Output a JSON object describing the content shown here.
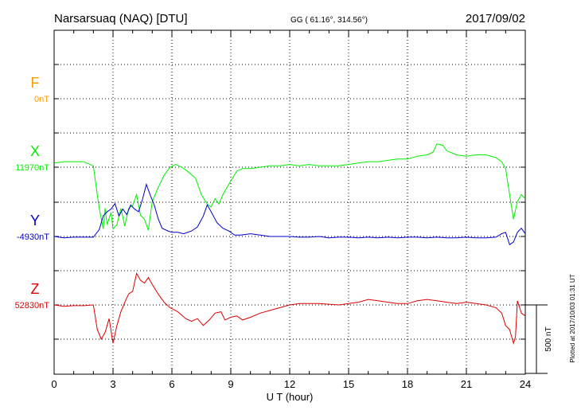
{
  "header": {
    "station": "Narsarsuaq (NAQ)  [DTU]",
    "coords": "GG ( 61.16°, 314.56°)",
    "date": "2017/09/02"
  },
  "side_note": "Plotted at 2017/10/03 01:31  UT",
  "scale_label": "500 nT",
  "colors": {
    "F": "#ff9900",
    "X": "#00ee00",
    "Y": "#0000cc",
    "Z": "#dd0000",
    "grid": "#000000"
  },
  "chart_data": {
    "type": "line",
    "title": "Narsarsuaq (NAQ)  [DTU]",
    "xlabel": "U T (hour)",
    "xlim": [
      0,
      24
    ],
    "xticks": [
      0,
      3,
      6,
      9,
      12,
      15,
      18,
      21,
      24
    ],
    "grid": true,
    "scale_bar_nT": 500,
    "series": [
      {
        "name": "F",
        "baseline_label": "0nT",
        "color": "#ff9900",
        "points": []
      },
      {
        "name": "X",
        "baseline_label": "11970nT",
        "color": "#00ee00",
        "points": [
          [
            0.0,
            30
          ],
          [
            0.5,
            40
          ],
          [
            1.0,
            40
          ],
          [
            1.5,
            40
          ],
          [
            2.0,
            10
          ],
          [
            2.1,
            -100
          ],
          [
            2.3,
            -300
          ],
          [
            2.5,
            -450
          ],
          [
            2.6,
            -300
          ],
          [
            2.7,
            -420
          ],
          [
            2.9,
            -330
          ],
          [
            3.0,
            -450
          ],
          [
            3.2,
            -420
          ],
          [
            3.4,
            -300
          ],
          [
            3.6,
            -430
          ],
          [
            3.8,
            -300
          ],
          [
            4.0,
            -280
          ],
          [
            4.2,
            -200
          ],
          [
            4.4,
            -350
          ],
          [
            4.6,
            -380
          ],
          [
            4.8,
            -460
          ],
          [
            5.0,
            -250
          ],
          [
            5.3,
            -150
          ],
          [
            5.6,
            -60
          ],
          [
            5.9,
            0
          ],
          [
            6.2,
            20
          ],
          [
            6.5,
            0
          ],
          [
            6.8,
            -30
          ],
          [
            7.2,
            -80
          ],
          [
            7.5,
            -200
          ],
          [
            7.8,
            -270
          ],
          [
            8.0,
            -290
          ],
          [
            8.2,
            -230
          ],
          [
            8.4,
            -270
          ],
          [
            8.6,
            -200
          ],
          [
            8.8,
            -150
          ],
          [
            9.0,
            -100
          ],
          [
            9.3,
            -30
          ],
          [
            9.6,
            -10
          ],
          [
            10.0,
            -10
          ],
          [
            10.5,
            0
          ],
          [
            11.0,
            10
          ],
          [
            11.5,
            10
          ],
          [
            12.0,
            20
          ],
          [
            12.5,
            10
          ],
          [
            13.0,
            20
          ],
          [
            13.5,
            10
          ],
          [
            14.0,
            10
          ],
          [
            14.5,
            10
          ],
          [
            15.0,
            20
          ],
          [
            15.5,
            30
          ],
          [
            16.0,
            40
          ],
          [
            16.5,
            40
          ],
          [
            17.0,
            50
          ],
          [
            17.5,
            60
          ],
          [
            18.0,
            60
          ],
          [
            18.5,
            80
          ],
          [
            19.0,
            90
          ],
          [
            19.3,
            110
          ],
          [
            19.5,
            170
          ],
          [
            19.8,
            160
          ],
          [
            20.0,
            120
          ],
          [
            20.5,
            90
          ],
          [
            21.0,
            80
          ],
          [
            21.5,
            90
          ],
          [
            22.0,
            90
          ],
          [
            22.5,
            70
          ],
          [
            22.8,
            40
          ],
          [
            23.0,
            -10
          ],
          [
            23.2,
            -200
          ],
          [
            23.4,
            -380
          ],
          [
            23.6,
            -250
          ],
          [
            23.8,
            -200
          ],
          [
            24.0,
            -230
          ]
        ]
      },
      {
        "name": "Y",
        "baseline_label": "-4930nT",
        "color": "#0000cc",
        "points": [
          [
            0.0,
            0
          ],
          [
            0.5,
            -10
          ],
          [
            1.0,
            -5
          ],
          [
            1.5,
            -5
          ],
          [
            2.0,
            -5
          ],
          [
            2.3,
            50
          ],
          [
            2.5,
            150
          ],
          [
            2.7,
            180
          ],
          [
            2.9,
            200
          ],
          [
            3.1,
            240
          ],
          [
            3.3,
            150
          ],
          [
            3.5,
            200
          ],
          [
            3.7,
            160
          ],
          [
            3.9,
            230
          ],
          [
            4.1,
            200
          ],
          [
            4.3,
            180
          ],
          [
            4.5,
            270
          ],
          [
            4.7,
            380
          ],
          [
            4.9,
            300
          ],
          [
            5.1,
            230
          ],
          [
            5.3,
            130
          ],
          [
            5.5,
            60
          ],
          [
            5.8,
            40
          ],
          [
            6.0,
            30
          ],
          [
            6.3,
            30
          ],
          [
            6.6,
            20
          ],
          [
            7.0,
            40
          ],
          [
            7.3,
            70
          ],
          [
            7.6,
            150
          ],
          [
            7.8,
            230
          ],
          [
            8.0,
            180
          ],
          [
            8.3,
            100
          ],
          [
            8.6,
            60
          ],
          [
            8.9,
            40
          ],
          [
            9.2,
            10
          ],
          [
            9.5,
            10
          ],
          [
            10.0,
            20
          ],
          [
            10.5,
            10
          ],
          [
            11.0,
            0
          ],
          [
            11.5,
            0
          ],
          [
            12.0,
            0
          ],
          [
            12.5,
            -5
          ],
          [
            13.0,
            -5
          ],
          [
            13.5,
            0
          ],
          [
            14.0,
            -10
          ],
          [
            14.5,
            -5
          ],
          [
            15.0,
            -5
          ],
          [
            15.5,
            -10
          ],
          [
            16.0,
            -5
          ],
          [
            16.5,
            -10
          ],
          [
            17.0,
            -5
          ],
          [
            17.5,
            -10
          ],
          [
            18.0,
            -5
          ],
          [
            18.5,
            -5
          ],
          [
            19.0,
            -10
          ],
          [
            19.5,
            -5
          ],
          [
            20.0,
            -10
          ],
          [
            20.5,
            -10
          ],
          [
            21.0,
            -5
          ],
          [
            21.5,
            -10
          ],
          [
            22.0,
            -10
          ],
          [
            22.5,
            -5
          ],
          [
            22.8,
            20
          ],
          [
            23.0,
            30
          ],
          [
            23.2,
            -60
          ],
          [
            23.4,
            -40
          ],
          [
            23.6,
            30
          ],
          [
            23.8,
            60
          ],
          [
            24.0,
            20
          ]
        ]
      },
      {
        "name": "Z",
        "baseline_label": "52830nT",
        "color": "#dd0000",
        "points": [
          [
            0.0,
            0
          ],
          [
            0.5,
            -10
          ],
          [
            1.0,
            -5
          ],
          [
            1.5,
            -5
          ],
          [
            2.0,
            0
          ],
          [
            2.2,
            -180
          ],
          [
            2.4,
            -250
          ],
          [
            2.6,
            -200
          ],
          [
            2.8,
            -100
          ],
          [
            3.0,
            -280
          ],
          [
            3.2,
            -150
          ],
          [
            3.4,
            -50
          ],
          [
            3.6,
            20
          ],
          [
            3.8,
            80
          ],
          [
            4.0,
            100
          ],
          [
            4.2,
            230
          ],
          [
            4.4,
            180
          ],
          [
            4.6,
            160
          ],
          [
            4.8,
            200
          ],
          [
            5.0,
            150
          ],
          [
            5.3,
            80
          ],
          [
            5.6,
            20
          ],
          [
            5.9,
            -20
          ],
          [
            6.3,
            -50
          ],
          [
            6.7,
            -100
          ],
          [
            7.0,
            -120
          ],
          [
            7.3,
            -100
          ],
          [
            7.6,
            -150
          ],
          [
            7.9,
            -110
          ],
          [
            8.2,
            -60
          ],
          [
            8.5,
            -50
          ],
          [
            8.7,
            -110
          ],
          [
            9.0,
            -90
          ],
          [
            9.3,
            -80
          ],
          [
            9.6,
            -110
          ],
          [
            10.0,
            -90
          ],
          [
            10.5,
            -60
          ],
          [
            11.0,
            -40
          ],
          [
            11.5,
            -20
          ],
          [
            12.0,
            0
          ],
          [
            12.5,
            10
          ],
          [
            13.0,
            10
          ],
          [
            13.5,
            10
          ],
          [
            14.0,
            5
          ],
          [
            14.5,
            0
          ],
          [
            15.0,
            10
          ],
          [
            15.5,
            20
          ],
          [
            16.0,
            40
          ],
          [
            16.5,
            30
          ],
          [
            17.0,
            20
          ],
          [
            17.5,
            10
          ],
          [
            18.0,
            10
          ],
          [
            18.5,
            30
          ],
          [
            19.0,
            40
          ],
          [
            19.5,
            30
          ],
          [
            20.0,
            20
          ],
          [
            20.5,
            10
          ],
          [
            21.0,
            20
          ],
          [
            21.5,
            10
          ],
          [
            22.0,
            0
          ],
          [
            22.5,
            -20
          ],
          [
            22.8,
            -60
          ],
          [
            23.0,
            -150
          ],
          [
            23.2,
            -180
          ],
          [
            23.4,
            -280
          ],
          [
            23.5,
            -230
          ],
          [
            23.6,
            30
          ],
          [
            23.8,
            -60
          ],
          [
            24.0,
            -80
          ]
        ]
      }
    ]
  }
}
